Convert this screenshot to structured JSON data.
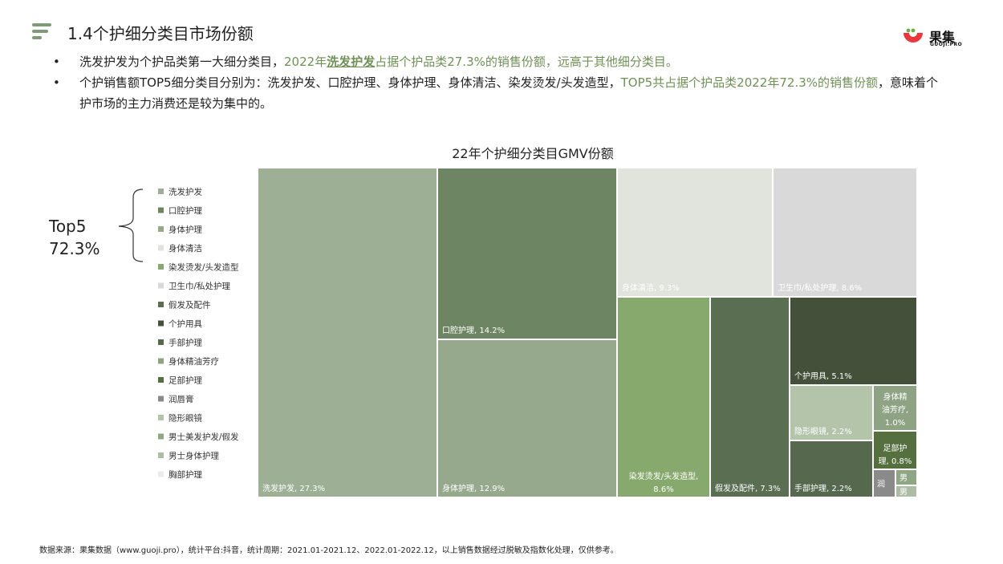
{
  "header": {
    "title": "1.4个护细分类目市场份额",
    "logo_cn": "果集",
    "logo_en": "GUOJI.PRO"
  },
  "bullets": [
    {
      "marker": "•",
      "p1": "洗发护发为个护品类第一大细分类目，",
      "p2": "2022年",
      "p3": "洗发护发",
      "p4": "占据个护品类27.3%的销售份额，远高于其他细分类目。"
    },
    {
      "marker": "•",
      "p1": "个护销售额TOP5细分类目分别为：洗发护发、口腔护理、身体护理、身体清洁、染发烫发/头发造型，",
      "p2": "TOP5共占据个护品类2022年72.3%的销售份额",
      "p3": "，意味着个护市场的主力消费还是较为集中的。"
    }
  ],
  "top5": {
    "label": "Top5",
    "value": "72.3%"
  },
  "footnote": "数据来源：果集数据（www.guoji.pro），统计平台:抖音，统计周期：2021.01-2021.12、2022.01-2022.12，以上销售数据经过脱敏及指数化处理，仅供参考。",
  "colors": {
    "accent": "#6f9057",
    "menu_icon": "#7f9a77",
    "logo_red": "#e8383d",
    "tile_text": "#ffffff"
  },
  "chart_data": {
    "type": "treemap",
    "title": "22年个护细分类目GMV份额",
    "unit": "%",
    "legend_position": "left",
    "series": [
      {
        "name": "洗发护发",
        "value": 27.3,
        "tile_label": "洗发护发, 27.3%",
        "color": "#9db096"
      },
      {
        "name": "口腔护理",
        "value": 14.2,
        "tile_label": "口腔护理, 14.2%",
        "color": "#6d8562"
      },
      {
        "name": "身体护理",
        "value": 12.9,
        "tile_label": "身体护理, 12.9%",
        "color": "#97a98d"
      },
      {
        "name": "身体清洁",
        "value": 9.3,
        "tile_label": "身体清洁, 9.3%",
        "color": "#e0e4dc"
      },
      {
        "name": "染发烫发/头发造型",
        "value": 8.6,
        "tile_label": "染发烫发/头发造型, 8.6%",
        "color": "#88a96e"
      },
      {
        "name": "卫生巾/私处护理",
        "value": 8.6,
        "tile_label": "卫生巾/私处护理, 8.6%",
        "color": "#d9d9d9"
      },
      {
        "name": "假发及配件",
        "value": 7.3,
        "tile_label": "假发及配件, 7.3%",
        "color": "#5a6e52"
      },
      {
        "name": "个护用具",
        "value": 5.1,
        "tile_label": "个护用具, 5.1%",
        "color": "#445039"
      },
      {
        "name": "手部护理",
        "value": 2.2,
        "tile_label": "手部护理, 2.2%",
        "color": "#56694e"
      },
      {
        "name": "身体精油芳疗",
        "value": 1.0,
        "tile_label": "身体精油芳疗, 1.0%",
        "color": "#8ea383"
      },
      {
        "name": "足部护理",
        "value": 0.8,
        "tile_label": "足部护理, 0.8%",
        "color": "#556f3e"
      },
      {
        "name": "润唇膏",
        "value": null,
        "tile_label": "润",
        "color": "#8a8a8a"
      },
      {
        "name": "隐形眼镜",
        "value": 2.2,
        "tile_label": "隐形眼镜, 2.2%",
        "color": "#b4c4ab"
      },
      {
        "name": "男士美发护发/假发",
        "value": null,
        "tile_label": "男",
        "color": "#8fa684"
      },
      {
        "name": "男士身体护理",
        "value": null,
        "tile_label": "男",
        "color": "#adbda5"
      },
      {
        "name": "胸部护理",
        "value": null,
        "tile_label": "",
        "color": "#ececec"
      }
    ]
  }
}
